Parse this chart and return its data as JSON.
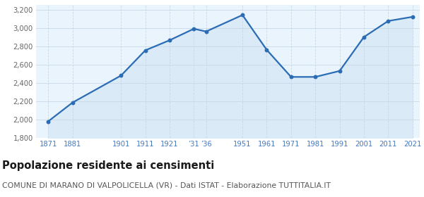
{
  "years": [
    1871,
    1881,
    1901,
    1911,
    1921,
    1931,
    1936,
    1951,
    1961,
    1971,
    1981,
    1991,
    2001,
    2011,
    2021
  ],
  "population": [
    1980,
    2185,
    2480,
    2755,
    2865,
    2990,
    2960,
    3140,
    2760,
    2465,
    2465,
    2530,
    2900,
    3075,
    3120
  ],
  "line_color": "#2b6cb5",
  "fill_color": "#daeaf7",
  "marker_color": "#2b6cb5",
  "bg_color": "#eaf4fc",
  "grid_color_h": "#c8d8e8",
  "grid_color_v": "#c8d8e8",
  "ylim": [
    1800,
    3250
  ],
  "yticks": [
    1800,
    2000,
    2200,
    2400,
    2600,
    2800,
    3000,
    3200
  ],
  "xlim_min": 1866,
  "xlim_max": 2024,
  "x_tick_positions": [
    1871,
    1881,
    1901,
    1911,
    1921,
    1931,
    1936,
    1951,
    1961,
    1971,
    1981,
    1991,
    2001,
    2011,
    2021
  ],
  "x_tick_labels": [
    "1871",
    "1881",
    "1901",
    "1911",
    "1921",
    "’31",
    "’36",
    "1951",
    "1961",
    "1971",
    "1981",
    "1991",
    "2001",
    "2011",
    "2021"
  ],
  "title": "Popolazione residente ai censimenti",
  "subtitle": "COMUNE DI MARANO DI VALPOLICELLA (VR) - Dati ISTAT - Elaborazione TUTTITALIA.IT",
  "title_fontsize": 10.5,
  "subtitle_fontsize": 7.8,
  "tick_fontsize": 7.2,
  "ytick_fontsize": 7.2
}
